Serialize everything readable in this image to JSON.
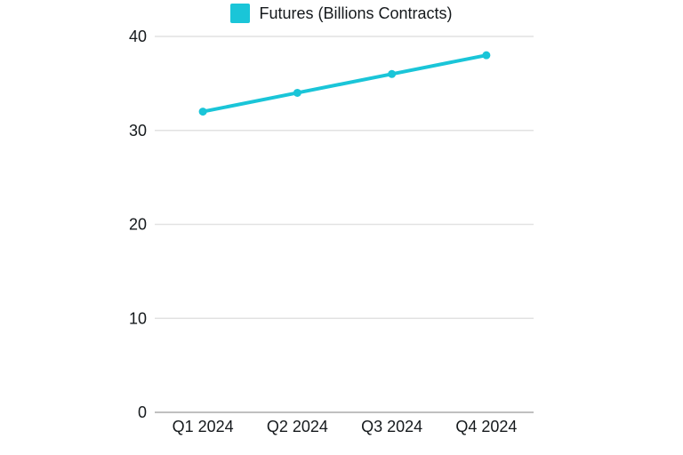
{
  "legend": {
    "label": "Futures (Billions Contracts)"
  },
  "colors": {
    "series": "#1AC5D8",
    "grid": "#e2e2e2",
    "axis": "#c0c0c0",
    "text": "#15191c",
    "background": "#ffffff"
  },
  "chart_data": {
    "type": "line",
    "categories": [
      "Q1 2024",
      "Q2 2024",
      "Q3 2024",
      "Q4 2024"
    ],
    "series": [
      {
        "name": "Futures (Billions Contracts)",
        "values": [
          32,
          34,
          36,
          38
        ]
      }
    ],
    "title": "",
    "xlabel": "",
    "ylabel": "",
    "ylim": [
      0,
      40
    ],
    "yticks": [
      0,
      10,
      20,
      30,
      40
    ],
    "grid": true,
    "legend_position": "top-center",
    "marker": "circle",
    "line_color": "#1AC5D8"
  }
}
